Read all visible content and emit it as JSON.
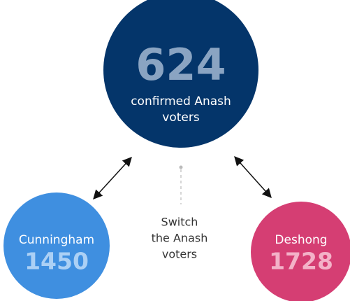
{
  "center": {
    "value": 624,
    "label_lines": [
      "confirmed Anash",
      "voters"
    ]
  },
  "nodes": [
    {
      "label": "Cunningham",
      "value": 1450
    },
    {
      "label": "Deshong",
      "value": 1728
    }
  ],
  "note_lines": [
    "Switch",
    "the Anash",
    "voters"
  ]
}
